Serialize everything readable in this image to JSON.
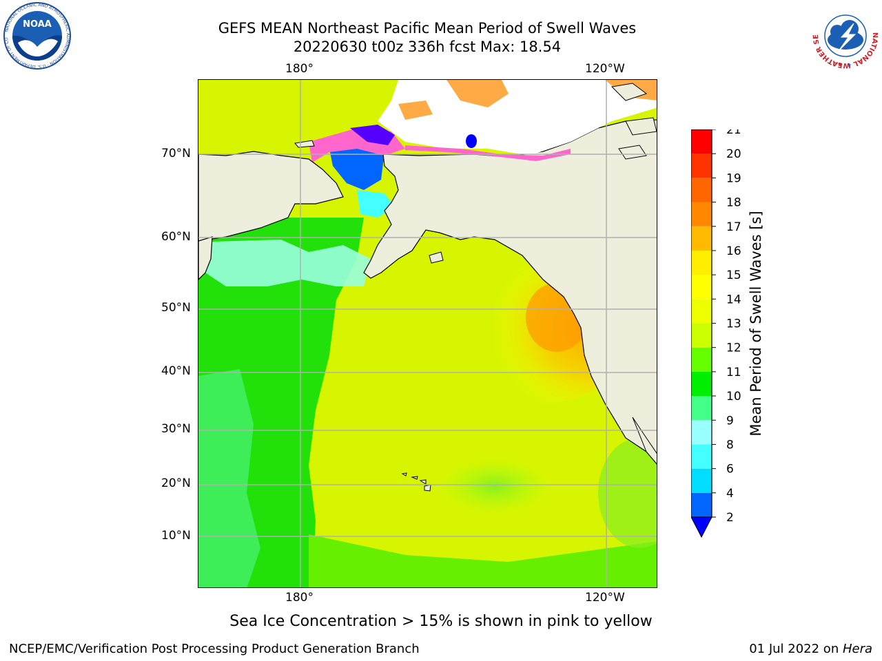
{
  "title": {
    "line1": "GEFS MEAN Northeast Pacific Mean Period of Swell Waves",
    "line2": "20220630 t00z 336h fcst   Max: 18.54"
  },
  "logos": {
    "noaa_text": "NOAA",
    "noaa_ring": "NATIONAL OCEANIC AND ATMOSPHERIC ADMINISTRATION · U.S. DEPARTMENT OF COMMERCE",
    "nws_ring": "NATIONAL WEATHER SERVICE"
  },
  "map": {
    "lon_labels_top": [
      "180°",
      "120°W"
    ],
    "lon_labels_bottom": [
      "180°",
      "120°W"
    ],
    "lat_labels": [
      "70°N",
      "60°N",
      "50°N",
      "40°N",
      "30°N",
      "20°N",
      "10°N"
    ],
    "colors": {
      "land": "#eeeedd",
      "ice_pink": "#ff66cc",
      "ice_orange": "#ffaa44",
      "gridline": "#b0b0b0"
    }
  },
  "colorbar": {
    "label": "Mean Period of Swell Waves [s]",
    "ticks": [
      "2",
      "4",
      "6",
      "8",
      "9",
      "10",
      "11",
      "12",
      "13",
      "14",
      "15",
      "16",
      "17",
      "18",
      "19",
      "20",
      "21"
    ],
    "colors": [
      "#0066ff",
      "#00ddff",
      "#44ffff",
      "#99ffff",
      "#44ff88",
      "#00ee00",
      "#66ff00",
      "#ccff00",
      "#eeff00",
      "#ffff00",
      "#ffee00",
      "#ffbb00",
      "#ff8800",
      "#ff6600",
      "#ff3300",
      "#ff0000"
    ],
    "under_color": "#0000ff"
  },
  "caption": "Sea Ice Concentration > 15% is shown in pink to yellow",
  "footer": {
    "left": "NCEP/EMC/Verification Post Processing Product Generation Branch",
    "date": "01 Jul 2022",
    "on": " on ",
    "machine": "Hera"
  }
}
